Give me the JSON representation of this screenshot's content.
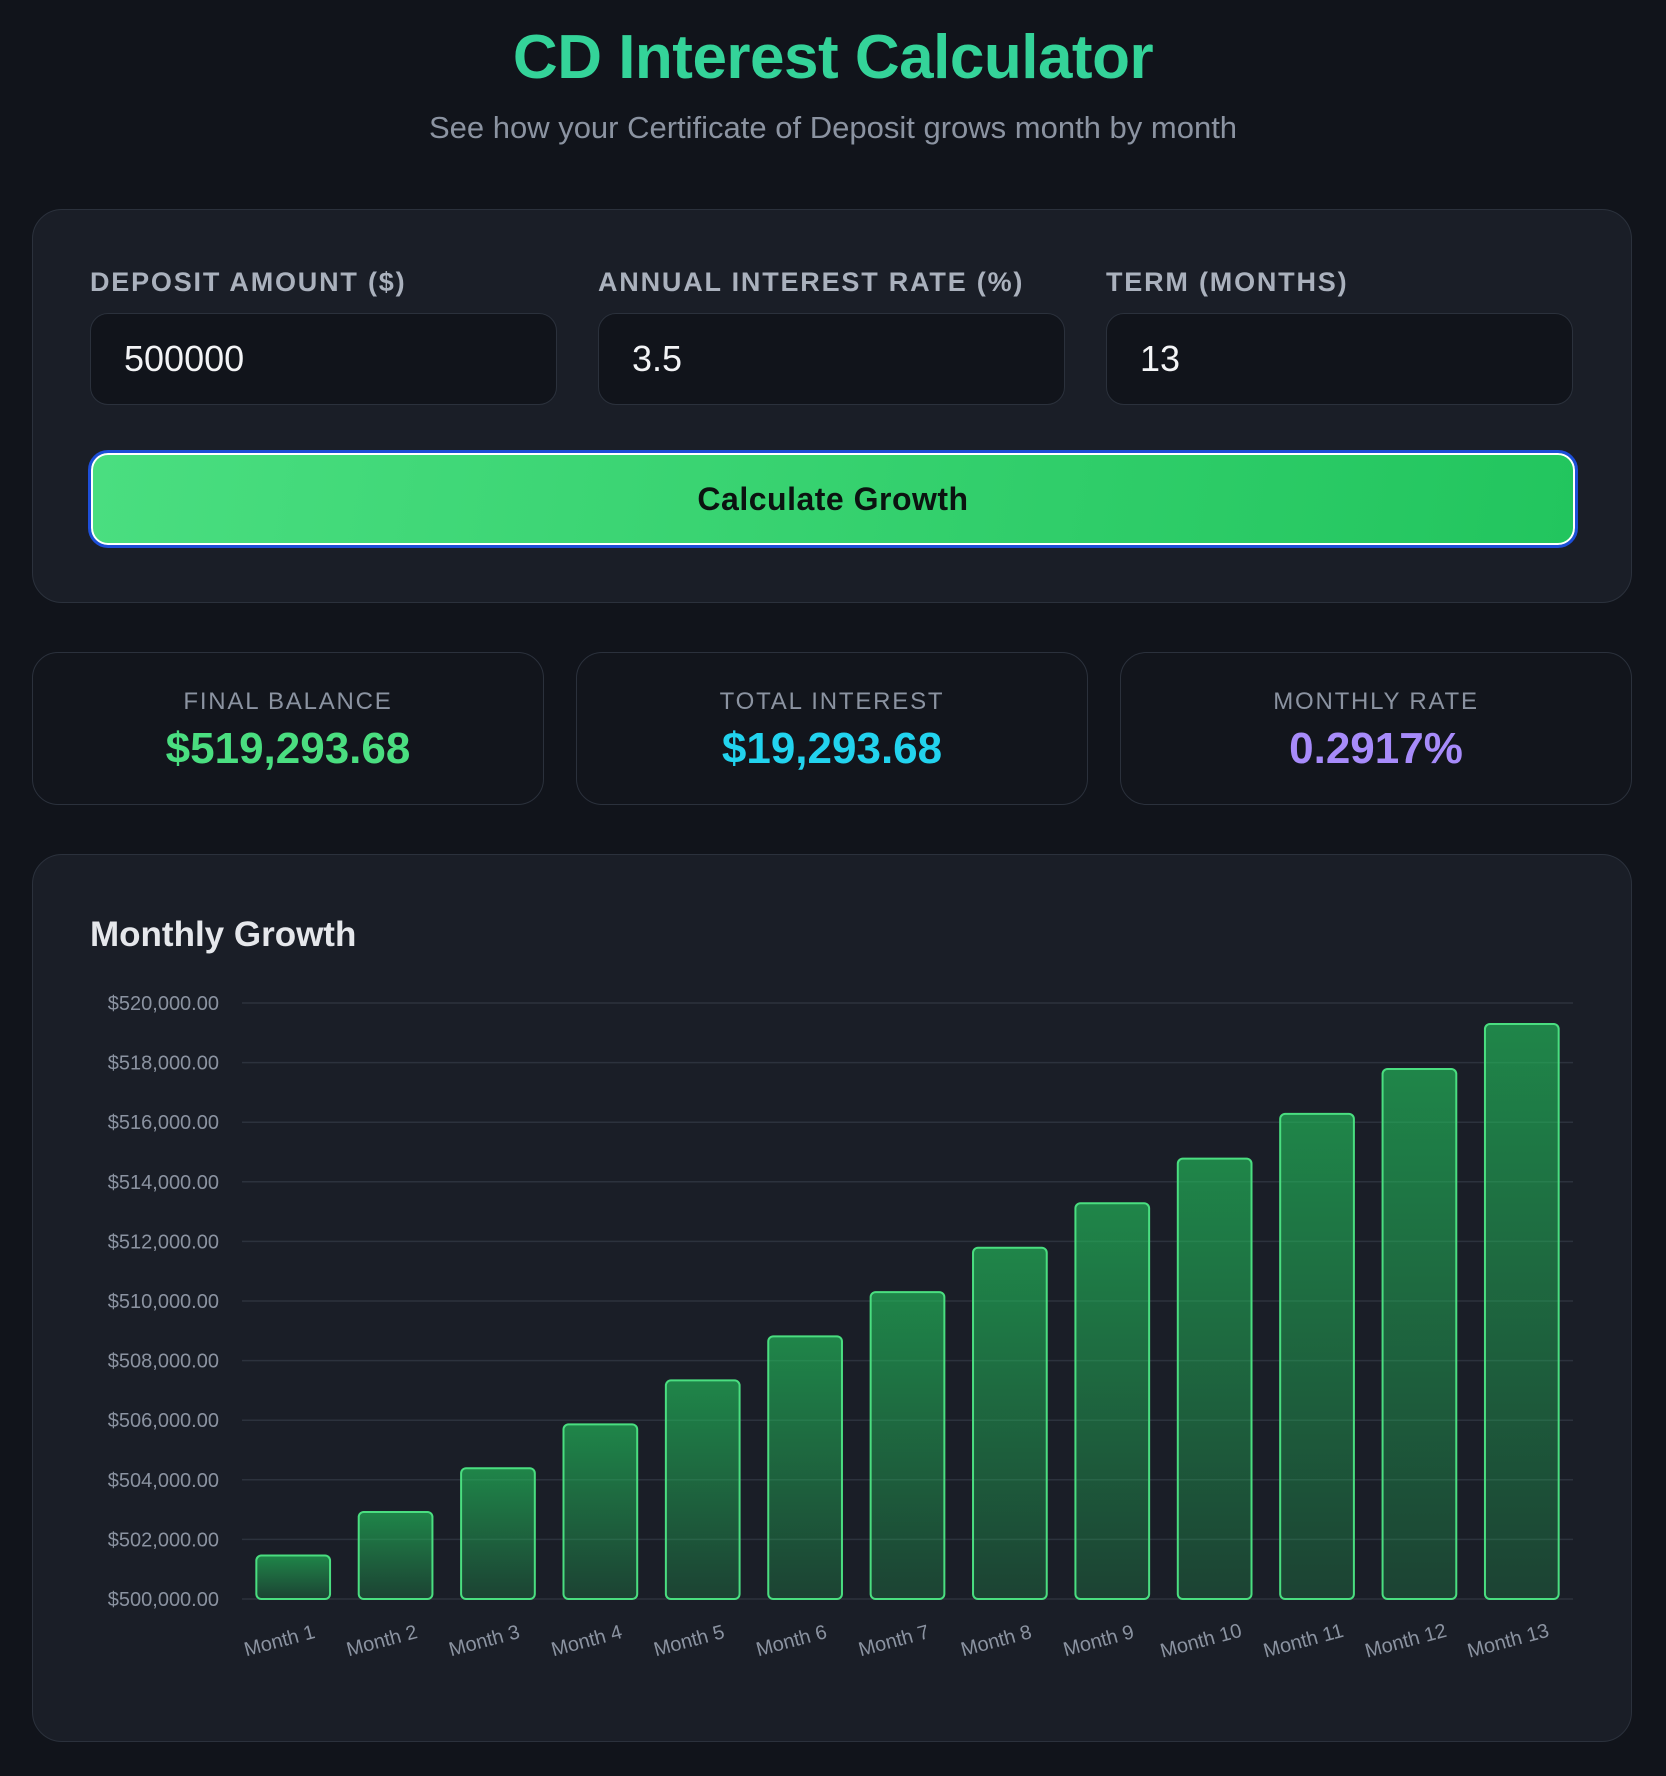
{
  "header": {
    "title": "CD Interest Calculator",
    "subtitle": "See how your Certificate of Deposit grows month by month"
  },
  "form": {
    "deposit": {
      "label": "Deposit Amount ($)",
      "value": "500000"
    },
    "rate": {
      "label": "Annual Interest Rate (%)",
      "value": "3.5"
    },
    "term": {
      "label": "Term (Months)",
      "value": "13"
    },
    "button_label": "Calculate Growth"
  },
  "stats": {
    "final_balance": {
      "label": "Final Balance",
      "value": "$519,293.68",
      "color": "#4ade80"
    },
    "total_interest": {
      "label": "Total Interest",
      "value": "$19,293.68",
      "color": "#22d3ee"
    },
    "monthly_rate": {
      "label": "Monthly Rate",
      "value": "0.2917%",
      "color": "#a78bfa"
    }
  },
  "chart": {
    "title": "Monthly Growth"
  },
  "chart_data": {
    "type": "bar",
    "categories": [
      "Month 1",
      "Month 2",
      "Month 3",
      "Month 4",
      "Month 5",
      "Month 6",
      "Month 7",
      "Month 8",
      "Month 9",
      "Month 10",
      "Month 11",
      "Month 12",
      "Month 13"
    ],
    "values": [
      501458.33,
      502920.92,
      504387.77,
      505858.9,
      507334.32,
      508814.05,
      510298.09,
      511786.46,
      513279.17,
      514776.22,
      516277.65,
      517783.46,
      519293.68
    ],
    "yticks": [
      "$500,000.00",
      "$502,000.00",
      "$504,000.00",
      "$506,000.00",
      "$508,000.00",
      "$510,000.00",
      "$512,000.00",
      "$514,000.00",
      "$516,000.00",
      "$518,000.00",
      "$520,000.00"
    ],
    "ylim": [
      500000,
      520000
    ],
    "grid": true,
    "bar_color": "#22c55e",
    "bar_border": "#4ade80"
  }
}
